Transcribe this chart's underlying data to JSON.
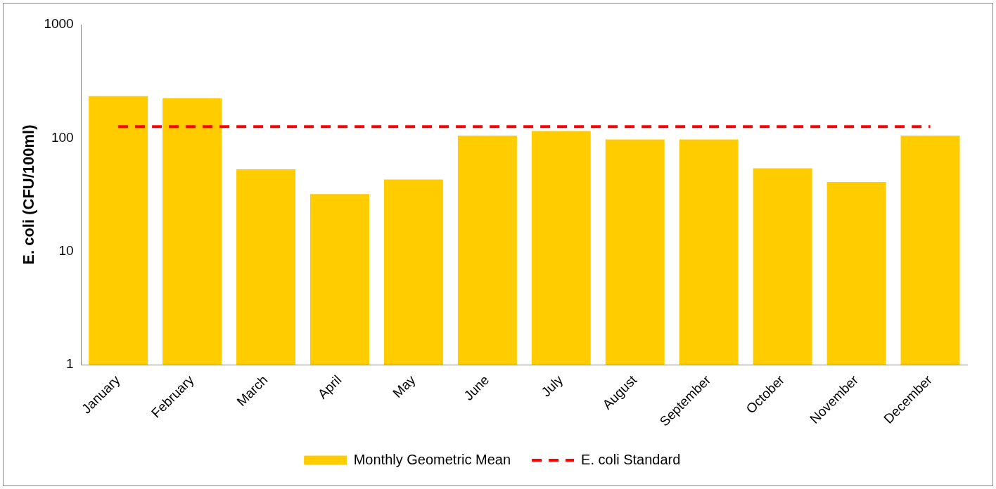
{
  "chart_data": {
    "type": "bar",
    "ylabel": "E. coli (CFU/100ml)",
    "log": "y",
    "ylim": [
      1,
      1000
    ],
    "yticks": [
      1,
      10,
      100,
      1000
    ],
    "grid": false,
    "legend": "bottom",
    "categories": [
      "January",
      "February",
      "March",
      "April",
      "May",
      "June",
      "July",
      "August",
      "September",
      "October",
      "November",
      "December"
    ],
    "series": [
      {
        "name": "Monthly Geometric Mean",
        "color": "#ffcc00",
        "values": [
          234,
          224,
          53,
          32,
          43,
          105,
          115,
          97,
          97,
          54,
          41,
          105
        ]
      },
      {
        "name": "E. coli Standard",
        "type": "line",
        "color": "#ff0000",
        "line_style": "dashed",
        "marker": "none",
        "values": [
          126,
          126,
          126,
          126,
          126,
          126,
          126,
          126,
          126,
          126,
          126,
          126
        ]
      }
    ]
  }
}
